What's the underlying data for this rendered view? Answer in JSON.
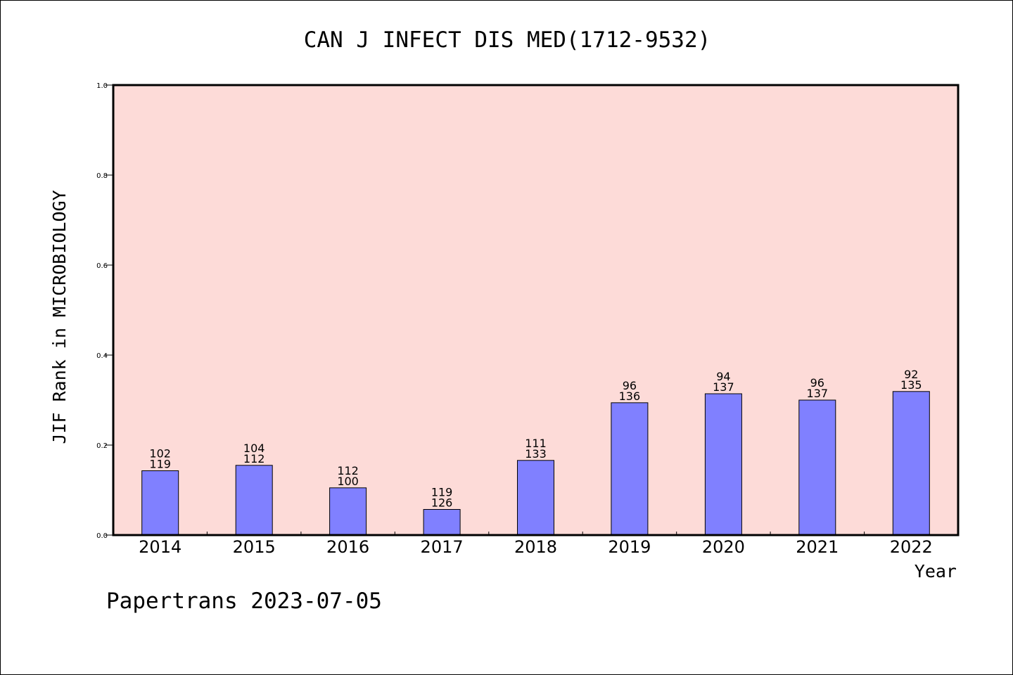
{
  "footer": "Papertrans 2023-07-05",
  "chart_data": {
    "type": "bar",
    "title": "CAN J INFECT DIS MED(1712-9532)",
    "xlabel": "Year",
    "ylabel": "JIF Rank in MICROBIOLOGY",
    "ylim": [
      0,
      1.0
    ],
    "yticks": [
      "0.0",
      "0.2",
      "0.4",
      "0.6",
      "0.8",
      "1.0"
    ],
    "grid": false,
    "categories": [
      "2014",
      "2015",
      "2016",
      "2017",
      "2018",
      "2019",
      "2020",
      "2021",
      "2022"
    ],
    "values": [
      0.143,
      0.155,
      0.105,
      0.057,
      0.166,
      0.294,
      0.314,
      0.3,
      0.319
    ],
    "labels_top": [
      "102",
      "104",
      "112",
      "119",
      "111",
      "96",
      "94",
      "96",
      "92"
    ],
    "labels_bottom": [
      "119",
      "112",
      "100",
      "126",
      "133",
      "136",
      "137",
      "137",
      "135"
    ],
    "colors": {
      "bar": "#8080ff",
      "plot_background": "#fddbd8"
    }
  }
}
